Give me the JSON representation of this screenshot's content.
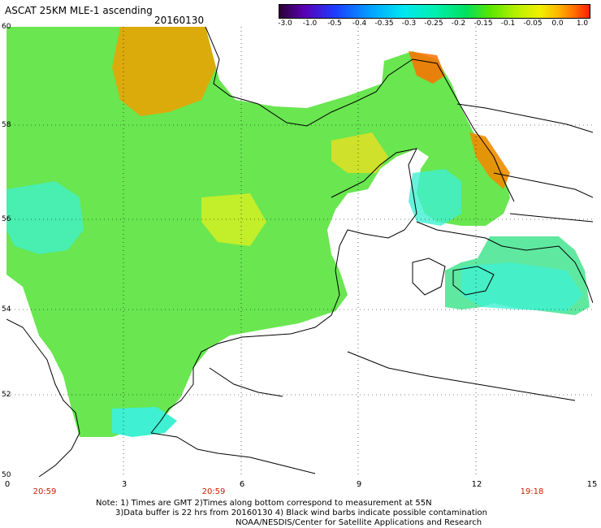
{
  "header": {
    "title": "ASCAT 25KM MLE-1 ascending",
    "date": "20160130"
  },
  "colorbar": {
    "labels": [
      "-3.0",
      "-1.0",
      "-0.5",
      "-0.4",
      "-0.35",
      "-0.3",
      "-0.25",
      "-0.2",
      "-0.15",
      "-0.1",
      "-0.05",
      "0.0",
      "1.0"
    ],
    "colors": [
      "#2b0033",
      "#5a00b4",
      "#1e3cff",
      "#00a6ff",
      "#00e6f0",
      "#00f0b0",
      "#00e060",
      "#5ae600",
      "#b4f000",
      "#f0f000",
      "#ffb400",
      "#ff6e00",
      "#ff1e00"
    ]
  },
  "map": {
    "lat_labels": [
      "60",
      "58",
      "56",
      "54",
      "52",
      "50"
    ],
    "lon_labels": [
      "0",
      "3",
      "6",
      "9",
      "12",
      "15"
    ],
    "time_labels": [
      "20:59",
      "20:59",
      "19:18"
    ],
    "colors": {
      "land_outline": "#000000",
      "ocean_green": "#69e650",
      "ocean_cyan": "#3ff0d2",
      "hot": "#f0a000"
    }
  },
  "footer": {
    "note_lines": [
      "Note: 1) Times are GMT 2)Times along bottom correspond to measurement at 55N",
      "3)Data buffer is 22 hrs from 20160130 4) Black wind barbs indicate possible contamination",
      "NOAA/NESDIS/Center for Satellite Applications and Research"
    ]
  }
}
